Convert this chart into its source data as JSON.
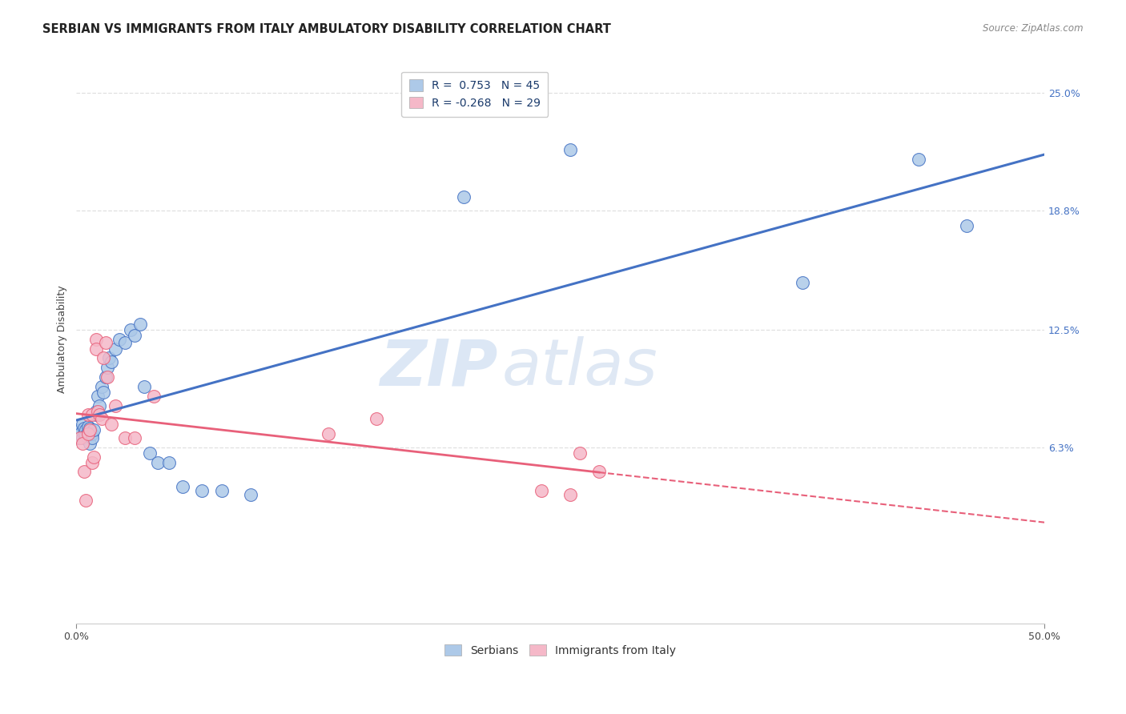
{
  "title": "SERBIAN VS IMMIGRANTS FROM ITALY AMBULATORY DISABILITY CORRELATION CHART",
  "source": "Source: ZipAtlas.com",
  "ylabel": "Ambulatory Disability",
  "watermark_zip": "ZIP",
  "watermark_atlas": "atlas",
  "xlim": [
    0.0,
    0.5
  ],
  "ylim": [
    -0.03,
    0.27
  ],
  "ytick_labels": [
    "6.3%",
    "12.5%",
    "18.8%",
    "25.0%"
  ],
  "ytick_positions": [
    0.063,
    0.125,
    0.188,
    0.25
  ],
  "serbian_color": "#adc9e8",
  "italian_color": "#f5b8c8",
  "line_serbian_color": "#4472c4",
  "line_italian_color": "#e8607a",
  "R_serbian": 0.753,
  "N_serbian": 45,
  "R_italian": -0.268,
  "N_italian": 29,
  "serbian_points_x": [
    0.001,
    0.002,
    0.002,
    0.003,
    0.003,
    0.004,
    0.004,
    0.005,
    0.005,
    0.006,
    0.006,
    0.007,
    0.007,
    0.008,
    0.008,
    0.009,
    0.01,
    0.01,
    0.011,
    0.012,
    0.013,
    0.014,
    0.015,
    0.016,
    0.017,
    0.018,
    0.02,
    0.022,
    0.025,
    0.028,
    0.03,
    0.033,
    0.035,
    0.038,
    0.042,
    0.048,
    0.055,
    0.065,
    0.075,
    0.09,
    0.2,
    0.255,
    0.375,
    0.435,
    0.46
  ],
  "serbian_points_y": [
    0.068,
    0.072,
    0.07,
    0.068,
    0.075,
    0.07,
    0.073,
    0.072,
    0.069,
    0.074,
    0.071,
    0.073,
    0.065,
    0.07,
    0.068,
    0.072,
    0.08,
    0.082,
    0.09,
    0.085,
    0.095,
    0.092,
    0.1,
    0.105,
    0.11,
    0.108,
    0.115,
    0.12,
    0.118,
    0.125,
    0.122,
    0.128,
    0.095,
    0.06,
    0.055,
    0.055,
    0.042,
    0.04,
    0.04,
    0.038,
    0.195,
    0.22,
    0.15,
    0.215,
    0.18
  ],
  "italian_points_x": [
    0.002,
    0.003,
    0.004,
    0.005,
    0.006,
    0.006,
    0.007,
    0.008,
    0.008,
    0.009,
    0.01,
    0.01,
    0.011,
    0.012,
    0.013,
    0.014,
    0.015,
    0.016,
    0.018,
    0.02,
    0.025,
    0.03,
    0.04,
    0.13,
    0.155,
    0.24,
    0.255,
    0.26,
    0.27
  ],
  "italian_points_y": [
    0.068,
    0.065,
    0.05,
    0.035,
    0.07,
    0.08,
    0.072,
    0.055,
    0.08,
    0.058,
    0.12,
    0.115,
    0.082,
    0.08,
    0.078,
    0.11,
    0.118,
    0.1,
    0.075,
    0.085,
    0.068,
    0.068,
    0.09,
    0.07,
    0.078,
    0.04,
    0.038,
    0.06,
    0.05
  ],
  "grid_color": "#e0e0e0",
  "background_color": "#ffffff",
  "title_fontsize": 10.5,
  "axis_label_fontsize": 9,
  "tick_fontsize": 9,
  "legend_fontsize": 10,
  "right_tick_color": "#4472c4"
}
